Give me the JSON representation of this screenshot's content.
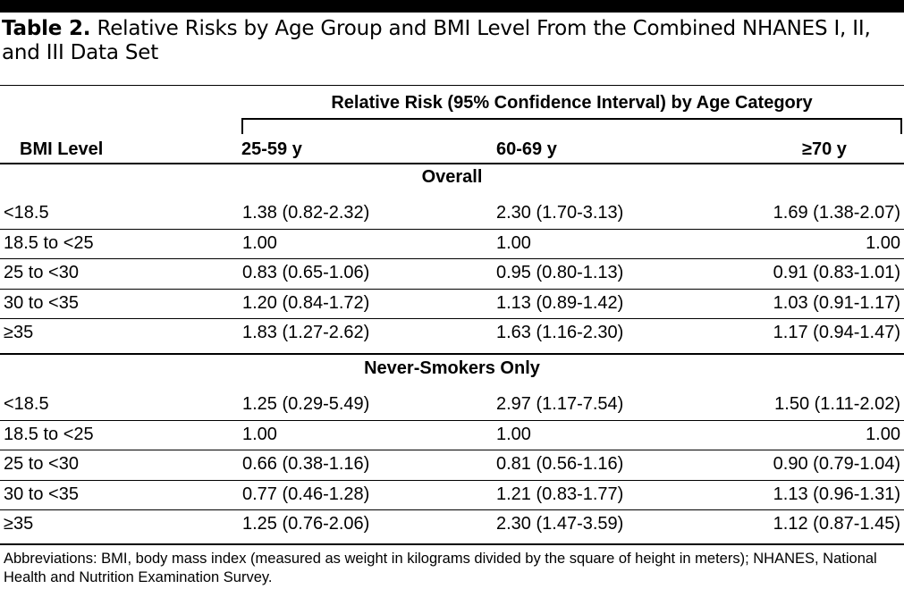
{
  "title": {
    "label": "Table 2.",
    "text": "Relative Risks by Age Group and BMI Level From the Combined NHANES I, II, and III Data Set"
  },
  "header": {
    "spanner": "Relative Risk (95% Confidence Interval) by Age Category",
    "bmi_level": "BMI Level",
    "columns": [
      "25-59 y",
      "60-69 y",
      "≥70 y"
    ]
  },
  "sections": [
    {
      "name": "Overall",
      "rows": [
        [
          "<18.5",
          "1.38 (0.82-2.32)",
          "2.30 (1.70-3.13)",
          "1.69 (1.38-2.07)"
        ],
        [
          "18.5 to <25",
          "1.00",
          "1.00",
          "1.00"
        ],
        [
          "25 to <30",
          "0.83 (0.65-1.06)",
          "0.95 (0.80-1.13)",
          "0.91 (0.83-1.01)"
        ],
        [
          "30 to <35",
          "1.20 (0.84-1.72)",
          "1.13 (0.89-1.42)",
          "1.03 (0.91-1.17)"
        ],
        [
          "≥35",
          "1.83 (1.27-2.62)",
          "1.63 (1.16-2.30)",
          "1.17 (0.94-1.47)"
        ]
      ]
    },
    {
      "name": "Never-Smokers Only",
      "rows": [
        [
          "<18.5",
          "1.25 (0.29-5.49)",
          "2.97 (1.17-7.54)",
          "1.50 (1.11-2.02)"
        ],
        [
          "18.5 to <25",
          "1.00",
          "1.00",
          "1.00"
        ],
        [
          "25 to <30",
          "0.66 (0.38-1.16)",
          "0.81 (0.56-1.16)",
          "0.90 (0.79-1.04)"
        ],
        [
          "30 to <35",
          "0.77 (0.46-1.28)",
          "1.21 (0.83-1.77)",
          "1.13 (0.96-1.31)"
        ],
        [
          "≥35",
          "1.25 (0.76-2.06)",
          "2.30 (1.47-3.59)",
          "1.12 (0.87-1.45)"
        ]
      ]
    }
  ],
  "footnote": "Abbreviations: BMI, body mass index (measured as weight in kilograms divided by the square of height in meters); NHANES, National Health and Nutrition Examination Survey."
}
